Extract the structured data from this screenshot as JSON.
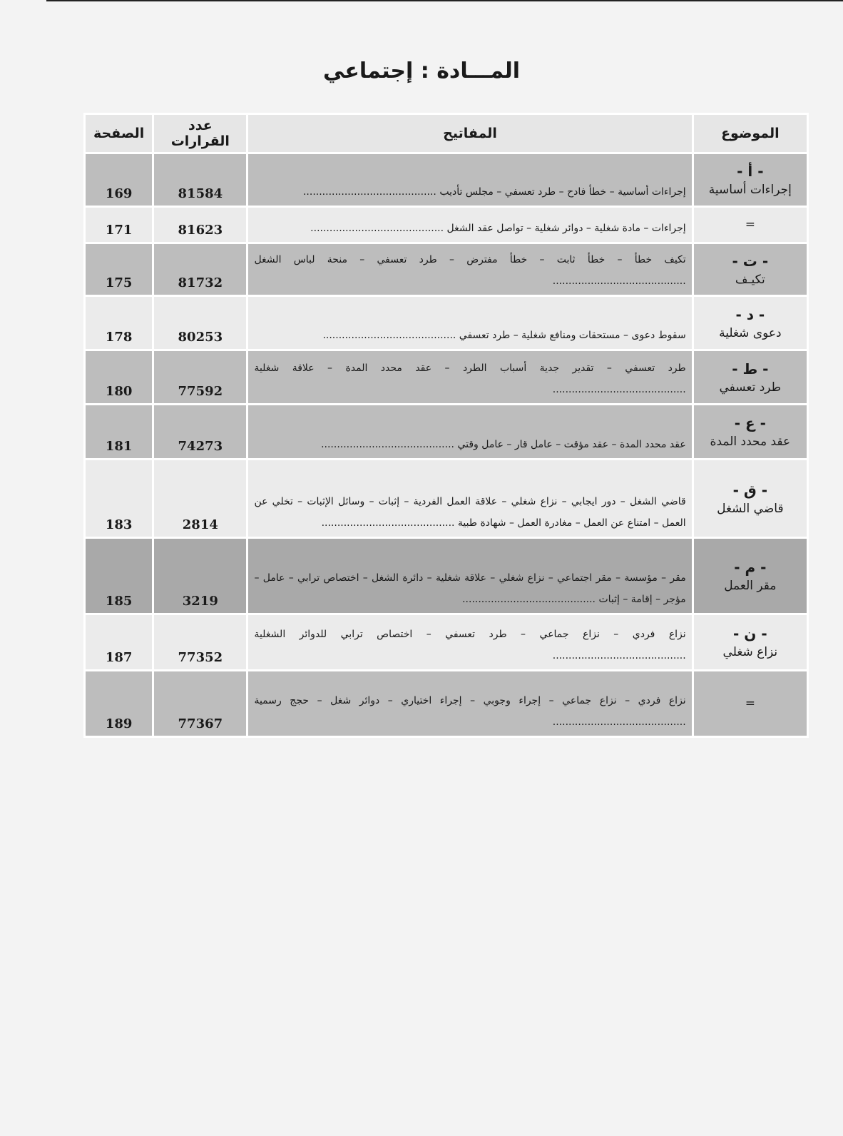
{
  "header": {
    "title": "المـــادة : إجتماعي"
  },
  "table": {
    "columns": [
      "الموضوع",
      "المفاتيح",
      "عدد القرارات",
      "الصفحة"
    ],
    "rows": [
      {
        "letter": "- أ -",
        "topic": "إجراءات أساسية",
        "keywords": "إجراءات أساسية – خطأ فادح – طرد تعسفي – مجلس تأديب",
        "decision": "81584",
        "page": "169"
      },
      {
        "topic": "=",
        "keywords": "إجراءات – مادة شغلية – دوائر شغلية – تواصل عقد الشغل",
        "decision": "81623",
        "page": "171"
      },
      {
        "letter": "- ت -",
        "topic": "تكيـف",
        "keywords": "تكيف خطأ – خطأ ثابت – خطأ مفترض – طرد تعسفي – منحة لباس الشغل",
        "decision": "81732",
        "page": "175"
      },
      {
        "letter": "- د -",
        "topic": "دعوى شغلية",
        "keywords": "سقوط دعوى – مستحقات ومنافع شغلية – طرد تعسفي",
        "decision": "80253",
        "page": "178"
      },
      {
        "letter": "- ط -",
        "topic": "طرد تعسفي",
        "keywords": "طرد تعسفي – تقدير جدية أسباب الطرد – عقد محدد المدة – علاقة شغلية",
        "decision": "77592",
        "page": "180"
      },
      {
        "letter": "- ع -",
        "topic": "عقد محدد المدة",
        "keywords": "عقد محدد المدة – عقد مؤقت – عامل قار – عامل وقتي",
        "decision": "74273",
        "page": "181"
      },
      {
        "letter": "- ق -",
        "topic": "قاضي الشغل",
        "keywords": "قاضي الشغل – دور ايجابي – نزاع شغلي – علاقة العمل الفردية – إثبات – وسائل الإثبات – تخلي عن العمل – امتناع عن العمل – مغادرة العمل – شهادة طبية",
        "decision": "2814",
        "page": "183"
      },
      {
        "letter": "- م -",
        "topic": "مقر العمل",
        "keywords": "مقر – مؤسسة – مقر اجتماعي – نزاع شغلي – علاقة شغلية – دائرة الشغل – اختصاص ترابي – عامل – مؤجر – إقامة – إثبات",
        "decision": "3219",
        "page": "185"
      },
      {
        "letter": "- ن -",
        "topic": "نزاع شغلي",
        "keywords": "نزاع فردي – نزاع جماعي – طرد تعسفي – اختصاص ترابي للدوائر الشغلية",
        "decision": "77352",
        "page": "187"
      },
      {
        "topic": "=",
        "keywords": "نزاع فردي – نزاع جماعي – إجراء وجوبي – إجراء اختياري – دوائر شغل – حجج رسمية",
        "decision": "77367",
        "page": "189"
      }
    ]
  }
}
